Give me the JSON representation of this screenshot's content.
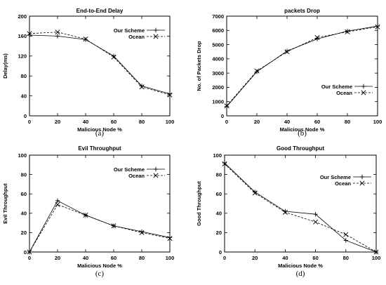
{
  "chart_data": [
    {
      "type": "line",
      "title": "End-to-End Delay",
      "xlabel": "Malicious Node %",
      "ylabel": "Delay(ms)",
      "caption": "(a)",
      "xlim": [
        0,
        100
      ],
      "ylim": [
        0,
        200
      ],
      "xticks": [
        0,
        20,
        40,
        60,
        80,
        100
      ],
      "yticks": [
        0,
        40,
        80,
        120,
        160,
        200
      ],
      "x": [
        0,
        20,
        40,
        60,
        80,
        100
      ],
      "legend_position": "top-right",
      "series": [
        {
          "name": "Our Scheme",
          "values": [
            162,
            160,
            153,
            120,
            60,
            44
          ],
          "marker": "plus",
          "dash": "solid"
        },
        {
          "name": "Ocean",
          "values": [
            165,
            168,
            154,
            118,
            58,
            42
          ],
          "marker": "cross",
          "dash": "dashed"
        }
      ]
    },
    {
      "type": "line",
      "title": "packets Drop",
      "xlabel": "Malicious Node %",
      "ylabel": "No. of Packets Drop",
      "caption": "(b)",
      "xlim": [
        0,
        100
      ],
      "ylim": [
        0,
        7000
      ],
      "xticks": [
        0,
        20,
        40,
        60,
        80,
        100
      ],
      "yticks": [
        0,
        1000,
        2000,
        3000,
        4000,
        5000,
        6000,
        7000
      ],
      "x": [
        0,
        20,
        40,
        60,
        80,
        100
      ],
      "legend_position": "bottom-right",
      "series": [
        {
          "name": "Our Scheme",
          "values": [
            650,
            3100,
            4550,
            5400,
            5950,
            6300
          ],
          "marker": "plus",
          "dash": "solid"
        },
        {
          "name": "Ocean",
          "values": [
            700,
            3150,
            4500,
            5500,
            5900,
            6250
          ],
          "marker": "cross",
          "dash": "dashed"
        }
      ]
    },
    {
      "type": "line",
      "title": "Evil Throughput",
      "xlabel": "Malicious Node %",
      "ylabel": "Evil Throughput",
      "caption": "(c)",
      "xlim": [
        0,
        100
      ],
      "ylim": [
        0,
        100
      ],
      "xticks": [
        0,
        20,
        40,
        60,
        80,
        100
      ],
      "yticks": [
        0,
        20,
        40,
        60,
        80,
        100
      ],
      "x": [
        0,
        20,
        40,
        60,
        80,
        100
      ],
      "legend_position": "top-right",
      "series": [
        {
          "name": "Our Scheme",
          "values": [
            0,
            53,
            38,
            27,
            21,
            15
          ],
          "marker": "plus",
          "dash": "solid"
        },
        {
          "name": "Ocean",
          "values": [
            0,
            49,
            38,
            27,
            20,
            14
          ],
          "marker": "cross",
          "dash": "dashed"
        }
      ]
    },
    {
      "type": "line",
      "title": "Good Throughput",
      "xlabel": "Malicious Node %",
      "ylabel": "Good Throughput",
      "caption": "(d)",
      "xlim": [
        0,
        100
      ],
      "ylim": [
        0,
        100
      ],
      "xticks": [
        0,
        20,
        40,
        60,
        80,
        100
      ],
      "yticks": [
        0,
        20,
        40,
        60,
        80,
        100
      ],
      "x": [
        0,
        20,
        40,
        60,
        80,
        100
      ],
      "legend_position": "top-right",
      "series": [
        {
          "name": "Our Scheme",
          "values": [
            92,
            62,
            42,
            39,
            12,
            0
          ],
          "marker": "plus",
          "dash": "solid"
        },
        {
          "name": "Ocean",
          "values": [
            91,
            61,
            41,
            31,
            18,
            0
          ],
          "marker": "cross",
          "dash": "dashed"
        }
      ]
    }
  ]
}
